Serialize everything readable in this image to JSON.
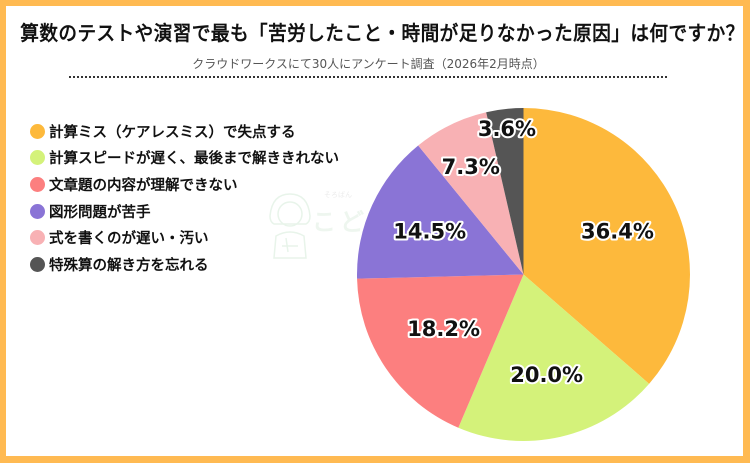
{
  "header": {
    "title": "算数のテストや演習で最も「苦労したこと・時間が足りなかった原因」は何ですか？",
    "subtitle": "クラウドワークスにて30人にアンケート調査（2026年2月時点）"
  },
  "watermark": {
    "small_text": "そろばん",
    "text": "こども"
  },
  "colors": {
    "frame": "#FFBA52",
    "background": "#FFFFFF"
  },
  "legend": {
    "items": [
      {
        "label": "計算ミス（ケアレスミス）で失点する",
        "color": "#FDB93C"
      },
      {
        "label": "計算スピードが遅く、最後まで解ききれない",
        "color": "#D4F27A"
      },
      {
        "label": "文章題の内容が理解できない",
        "color": "#FC7F7F"
      },
      {
        "label": "図形問題が苦手",
        "color": "#8A74D6"
      },
      {
        "label": "式を書くのが遅い・汚い",
        "color": "#F8B1B4"
      },
      {
        "label": "特殊算の解き方を忘れる",
        "color": "#555555"
      }
    ]
  },
  "chart_data": {
    "type": "pie",
    "title": "算数のテストや演習で最も「苦労したこと・時間が足りなかった原因」は何ですか？",
    "subtitle": "クラウドワークスにて30人にアンケート調査（2026年2月時点）",
    "categories": [
      "計算ミス（ケアレスミス）で失点する",
      "計算スピードが遅く、最後まで解ききれない",
      "文章題の内容が理解できない",
      "図形問題が苦手",
      "式を書くのが遅い・汚い",
      "特殊算の解き方を忘れる"
    ],
    "values": [
      36.4,
      20.0,
      18.2,
      14.5,
      7.3,
      3.6
    ],
    "labels": [
      "36.4%",
      "20.0%",
      "18.2%",
      "14.5%",
      "7.3%",
      "3.6%"
    ],
    "colors": [
      "#FDB93C",
      "#D4F27A",
      "#FC7F7F",
      "#8A74D6",
      "#F8B1B4",
      "#555555"
    ],
    "start_angle": "12 o'clock, clockwise",
    "legend_position": "left",
    "unit": "%"
  }
}
